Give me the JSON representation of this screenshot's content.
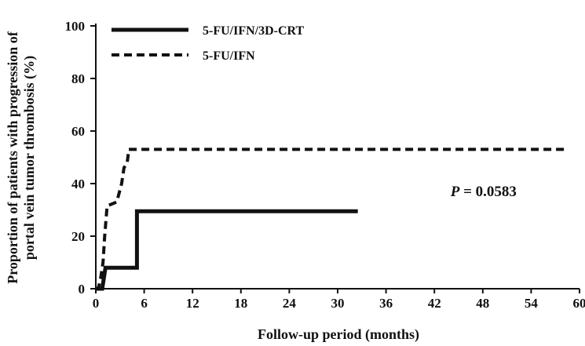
{
  "chart_data": {
    "type": "line",
    "xlabel": "Follow-up period (months)",
    "ylabel_lines": [
      "Proportion of patients with progression of",
      "portal vein tumor thrombosis (%)"
    ],
    "xlim": [
      0,
      60
    ],
    "ylim": [
      0,
      100
    ],
    "xticks": [
      0,
      6,
      12,
      18,
      24,
      30,
      36,
      42,
      48,
      54,
      60
    ],
    "yticks": [
      0,
      20,
      40,
      60,
      80,
      100
    ],
    "grid": false,
    "legend_position": "top-left",
    "annotation": {
      "italic": "P",
      "rest": " = 0.0583",
      "x": 44,
      "y": 37
    },
    "series": [
      {
        "name": "5-FU/IFN/3D-CRT",
        "style": "solid",
        "color": "#111111",
        "x": [
          0,
          0.8,
          1.2,
          1.2,
          5.1,
          5.1,
          32.5
        ],
        "y": [
          0,
          0,
          8,
          8,
          8,
          29.5,
          29.5
        ]
      },
      {
        "name": "5-FU/IFN",
        "style": "dashed",
        "color": "#111111",
        "x": [
          0,
          0.3,
          0.6,
          0.9,
          1.1,
          1.4,
          2.6,
          3.2,
          3.5,
          3.9,
          4.1,
          58.5
        ],
        "y": [
          0,
          0,
          4,
          10,
          20,
          31.5,
          33,
          40,
          46,
          48,
          53,
          53
        ]
      }
    ]
  }
}
